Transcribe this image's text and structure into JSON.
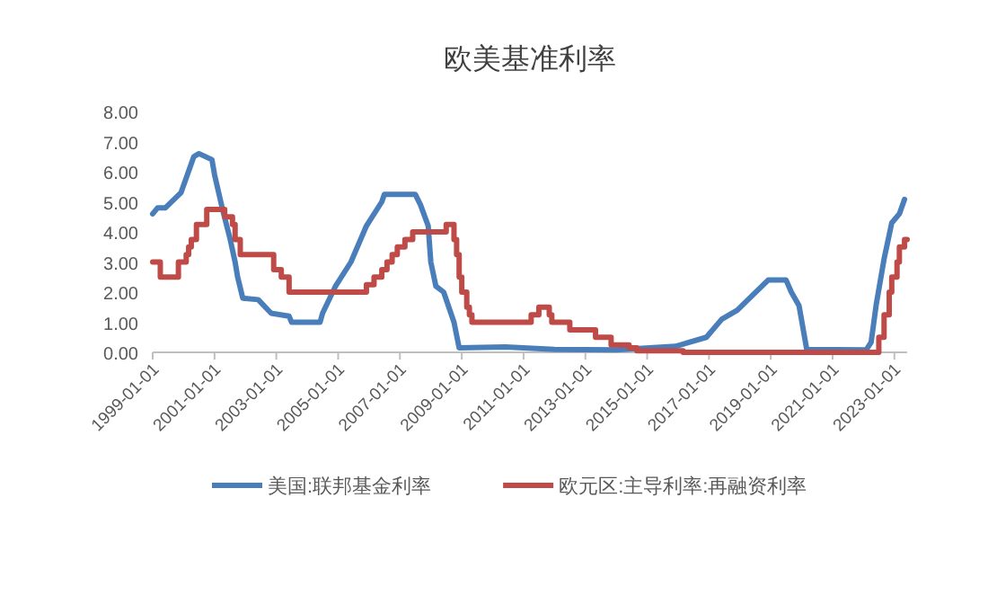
{
  "chart_data": {
    "type": "line",
    "title": "欧美基准利率",
    "legend": "bottom",
    "grid": false,
    "xlim": [
      "1999-01-01",
      "2023-06-01"
    ],
    "xticks": [
      "1999-01-01",
      "2001-01-01",
      "2003-01-01",
      "2005-01-01",
      "2007-01-01",
      "2009-01-01",
      "2011-01-01",
      "2013-01-01",
      "2015-01-01",
      "2017-01-01",
      "2019-01-01",
      "2021-01-01",
      "2023-01-01"
    ],
    "ylim": [
      0,
      8
    ],
    "yticks": [
      {
        "value": 0,
        "label": "0.00"
      },
      {
        "value": 1,
        "label": "1.00"
      },
      {
        "value": 2,
        "label": "2.00"
      },
      {
        "value": 3,
        "label": "3.00"
      },
      {
        "value": 4,
        "label": "4.00"
      },
      {
        "value": 5,
        "label": "5.00"
      },
      {
        "value": 6,
        "label": "6.00"
      },
      {
        "value": 7,
        "label": "7.00"
      },
      {
        "value": 8,
        "label": "8.00"
      }
    ],
    "series": [
      {
        "name": "美国:联邦基金利率",
        "color": "#4a7ebb",
        "x": [
          "1999-01",
          "1999-03",
          "1999-06",
          "1999-12",
          "2000-05",
          "2000-07",
          "2000-12",
          "2001-01",
          "2001-04",
          "2001-07",
          "2001-09",
          "2001-10",
          "2001-12",
          "2002-06",
          "2002-11",
          "2003-06",
          "2003-07",
          "2004-06",
          "2004-07",
          "2004-12",
          "2005-06",
          "2005-12",
          "2006-06",
          "2006-07",
          "2007-07",
          "2007-09",
          "2007-12",
          "2008-01",
          "2008-03",
          "2008-06",
          "2008-10",
          "2008-12",
          "2010-06",
          "2012-01",
          "2014-01",
          "2015-12",
          "2016-12",
          "2017-06",
          "2017-12",
          "2018-06",
          "2018-12",
          "2019-07",
          "2019-09",
          "2019-12",
          "2020-03",
          "2022-02",
          "2022-04",
          "2022-06",
          "2022-09",
          "2022-12",
          "2023-03",
          "2023-05"
        ],
        "values": [
          4.6,
          4.8,
          4.8,
          5.3,
          6.5,
          6.6,
          6.4,
          5.9,
          4.8,
          3.8,
          3.0,
          2.5,
          1.8,
          1.75,
          1.3,
          1.2,
          1.0,
          1.0,
          1.3,
          2.2,
          3.0,
          4.2,
          5.0,
          5.25,
          5.25,
          4.9,
          4.2,
          3.0,
          2.2,
          2.0,
          1.0,
          0.15,
          0.18,
          0.1,
          0.08,
          0.2,
          0.5,
          1.1,
          1.4,
          1.9,
          2.4,
          2.4,
          2.0,
          1.55,
          0.1,
          0.08,
          0.33,
          1.6,
          3.1,
          4.3,
          4.6,
          5.08
        ]
      },
      {
        "name": "欧元区:主导利率:再融资利率",
        "color": "#be4b48",
        "type": "step",
        "x": [
          "1999-01",
          "1999-04",
          "1999-11",
          "2000-02",
          "2000-03",
          "2000-04",
          "2000-06",
          "2000-10",
          "2001-05",
          "2001-08",
          "2001-09",
          "2001-11",
          "2002-12",
          "2003-03",
          "2003-06",
          "2005-12",
          "2006-03",
          "2006-06",
          "2006-08",
          "2006-10",
          "2006-12",
          "2007-03",
          "2007-06",
          "2008-07",
          "2008-10",
          "2008-11",
          "2008-12",
          "2009-01",
          "2009-03",
          "2009-04",
          "2009-05",
          "2011-04",
          "2011-07",
          "2011-11",
          "2011-12",
          "2012-07",
          "2013-05",
          "2013-11",
          "2014-06",
          "2014-09",
          "2016-03",
          "2022-07",
          "2022-09",
          "2022-11",
          "2022-12",
          "2023-02",
          "2023-03",
          "2023-05"
        ],
        "values": [
          3.0,
          2.5,
          3.0,
          3.25,
          3.5,
          3.75,
          4.25,
          4.75,
          4.5,
          4.25,
          3.75,
          3.25,
          2.75,
          2.5,
          2.0,
          2.25,
          2.5,
          2.75,
          3.0,
          3.25,
          3.5,
          3.75,
          4.0,
          4.25,
          3.75,
          3.25,
          2.5,
          2.0,
          1.5,
          1.25,
          1.0,
          1.25,
          1.5,
          1.25,
          1.0,
          0.75,
          0.5,
          0.25,
          0.15,
          0.05,
          0.0,
          0.5,
          1.25,
          2.0,
          2.5,
          3.0,
          3.5,
          3.75
        ]
      }
    ]
  }
}
